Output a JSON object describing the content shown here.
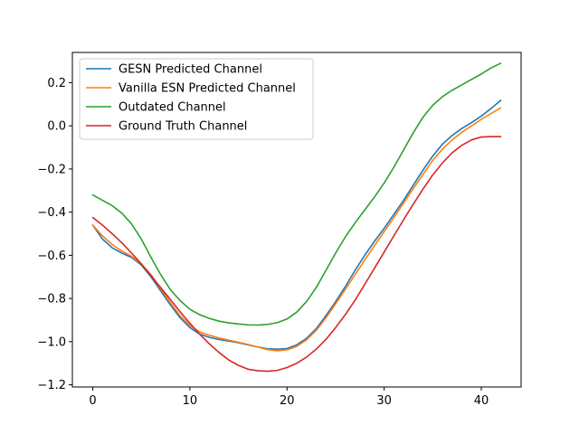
{
  "chart_data": {
    "type": "line",
    "title": "",
    "xlabel": "",
    "ylabel": "",
    "xlim": [
      -2.1,
      44.1
    ],
    "ylim": [
      -1.21,
      0.34
    ],
    "x_ticks": [
      0,
      10,
      20,
      30,
      40
    ],
    "y_ticks": [
      -1.2,
      -1.0,
      -0.8,
      -0.6,
      -0.4,
      -0.2,
      0.0,
      0.2
    ],
    "y_tick_labels": [
      "−1.2",
      "−1.0",
      "−0.8",
      "−0.6",
      "−0.4",
      "−0.2",
      "0.0",
      "0.2"
    ],
    "grid": false,
    "legend_position": "top-left",
    "x": [
      0,
      1,
      2,
      3,
      4,
      5,
      6,
      7,
      8,
      9,
      10,
      11,
      12,
      13,
      14,
      15,
      16,
      17,
      18,
      19,
      20,
      21,
      22,
      23,
      24,
      25,
      26,
      27,
      28,
      29,
      30,
      31,
      32,
      33,
      34,
      35,
      36,
      37,
      38,
      39,
      40,
      41,
      42
    ],
    "series": [
      {
        "name": "GESN Predicted Channel",
        "color": "#1f77b4",
        "values": [
          -0.46,
          -0.525,
          -0.565,
          -0.59,
          -0.61,
          -0.645,
          -0.7,
          -0.765,
          -0.83,
          -0.89,
          -0.935,
          -0.965,
          -0.98,
          -0.99,
          -0.997,
          -1.005,
          -1.015,
          -1.025,
          -1.033,
          -1.035,
          -1.032,
          -1.015,
          -0.985,
          -0.94,
          -0.88,
          -0.815,
          -0.745,
          -0.67,
          -0.6,
          -0.535,
          -0.475,
          -0.41,
          -0.345,
          -0.275,
          -0.205,
          -0.14,
          -0.085,
          -0.045,
          -0.012,
          0.015,
          0.045,
          0.08,
          0.118
        ]
      },
      {
        "name": "Vanilla ESN Predicted Channel",
        "color": "#ff7f0e",
        "values": [
          -0.46,
          -0.51,
          -0.55,
          -0.58,
          -0.605,
          -0.64,
          -0.69,
          -0.755,
          -0.82,
          -0.88,
          -0.925,
          -0.955,
          -0.97,
          -0.983,
          -0.993,
          -1.003,
          -1.013,
          -1.025,
          -1.037,
          -1.042,
          -1.038,
          -1.022,
          -0.992,
          -0.948,
          -0.89,
          -0.825,
          -0.758,
          -0.69,
          -0.622,
          -0.555,
          -0.49,
          -0.425,
          -0.358,
          -0.29,
          -0.225,
          -0.16,
          -0.108,
          -0.065,
          -0.03,
          0.0,
          0.03,
          0.057,
          0.083
        ]
      },
      {
        "name": "Outdated Channel",
        "color": "#2ca02c",
        "values": [
          -0.32,
          -0.345,
          -0.37,
          -0.405,
          -0.455,
          -0.525,
          -0.61,
          -0.69,
          -0.76,
          -0.81,
          -0.85,
          -0.875,
          -0.892,
          -0.905,
          -0.913,
          -0.918,
          -0.922,
          -0.923,
          -0.92,
          -0.912,
          -0.895,
          -0.863,
          -0.815,
          -0.75,
          -0.67,
          -0.59,
          -0.515,
          -0.45,
          -0.39,
          -0.33,
          -0.265,
          -0.192,
          -0.112,
          -0.032,
          0.04,
          0.095,
          0.135,
          0.165,
          0.19,
          0.215,
          0.24,
          0.268,
          0.29
        ]
      },
      {
        "name": "Ground Truth Channel",
        "color": "#d62728",
        "values": [
          -0.425,
          -0.46,
          -0.5,
          -0.542,
          -0.59,
          -0.64,
          -0.695,
          -0.75,
          -0.805,
          -0.862,
          -0.915,
          -0.965,
          -1.01,
          -1.05,
          -1.085,
          -1.11,
          -1.128,
          -1.135,
          -1.137,
          -1.133,
          -1.12,
          -1.1,
          -1.072,
          -1.035,
          -0.99,
          -0.935,
          -0.875,
          -0.808,
          -0.735,
          -0.66,
          -0.585,
          -0.51,
          -0.435,
          -0.363,
          -0.293,
          -0.228,
          -0.172,
          -0.125,
          -0.09,
          -0.065,
          -0.052,
          -0.05,
          -0.05
        ]
      }
    ]
  }
}
